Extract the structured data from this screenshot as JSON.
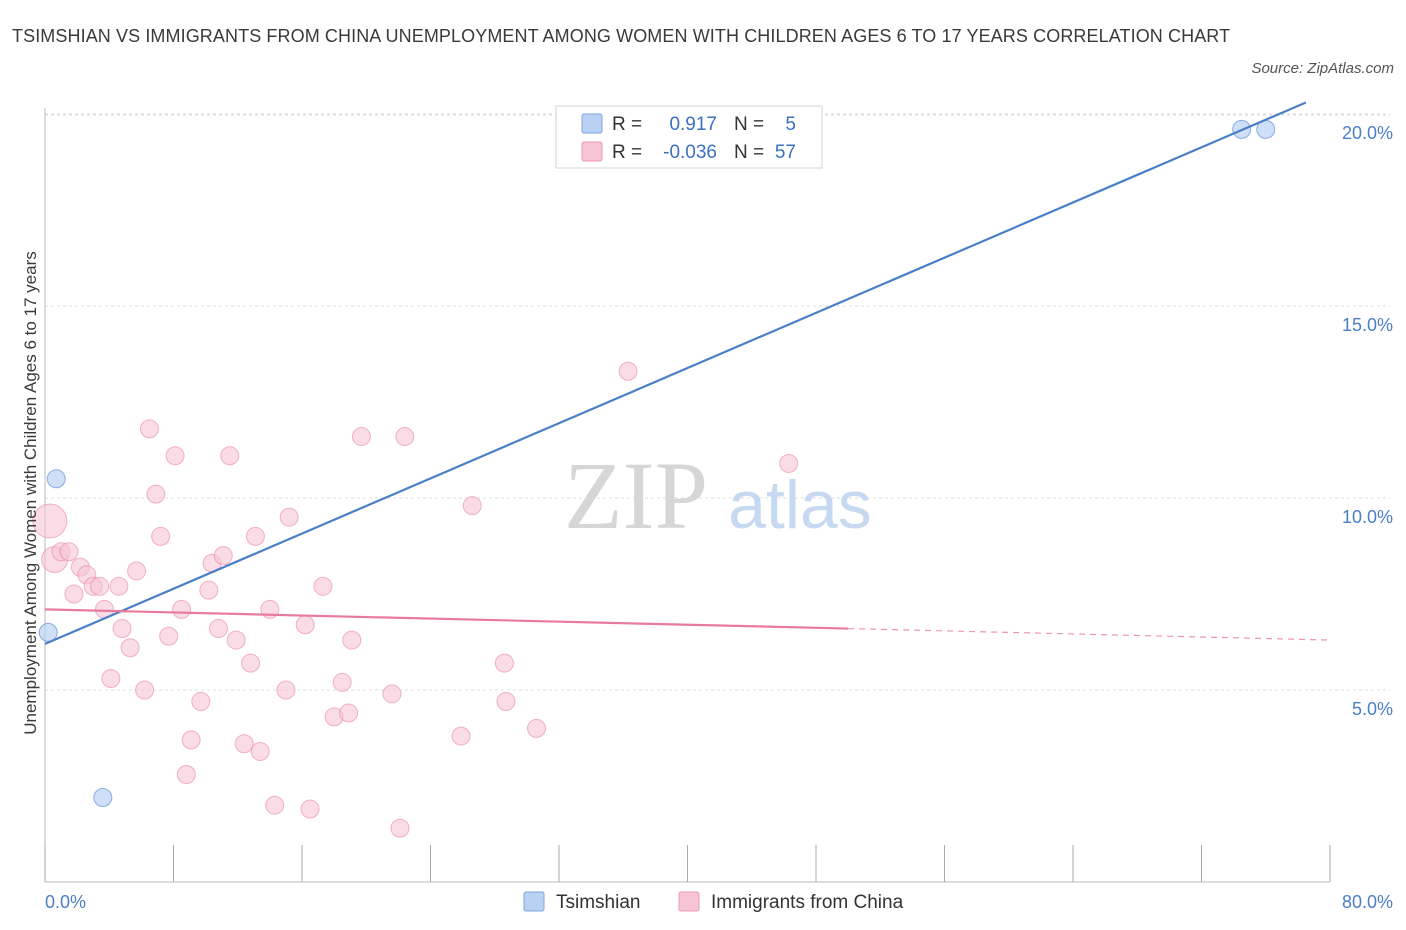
{
  "header": {
    "title": "TSIMSHIAN VS IMMIGRANTS FROM CHINA UNEMPLOYMENT AMONG WOMEN WITH CHILDREN AGES 6 TO 17 YEARS CORRELATION CHART",
    "source": "Source: ZipAtlas.com"
  },
  "watermark": {
    "zip": "ZIP",
    "atlas": "atlas"
  },
  "legend": {
    "r_label": "R =",
    "n_label": "N =",
    "rows": [
      {
        "r": "0.917",
        "n": "5"
      },
      {
        "r": "-0.036",
        "n": "57"
      }
    ]
  },
  "bottom_legend": [
    "Tsimshian",
    "Immigrants from China"
  ],
  "colors": {
    "tsimshian": "#4a7fc8",
    "tsimshian_fill": "#b9d1f3",
    "china": "#e87a9e",
    "china_fill": "#f7c4d5",
    "grid": "#dcdcdc"
  },
  "chart_data": {
    "type": "scatter",
    "title": "TSIMSHIAN VS IMMIGRANTS FROM CHINA UNEMPLOYMENT AMONG WOMEN WITH CHILDREN AGES 6 TO 17 YEARS CORRELATION CHART",
    "xlabel": "",
    "ylabel": "Unemployment Among Women with Children Ages 6 to 17 years",
    "xlim": [
      0,
      80
    ],
    "ylim": [
      0,
      20.5
    ],
    "x_tick_labels": [
      "0.0%",
      "80.0%"
    ],
    "y_tick_labels": [
      "5.0%",
      "10.0%",
      "15.0%",
      "20.0%"
    ],
    "y_ticks": [
      5,
      10,
      15,
      20
    ],
    "series": [
      {
        "name": "Tsimshian",
        "R": 0.917,
        "N": 5,
        "points": [
          [
            0.2,
            6.5,
            9
          ],
          [
            0.7,
            10.5,
            9
          ],
          [
            3.6,
            2.2,
            9
          ],
          [
            74.5,
            19.6,
            9
          ],
          [
            76.0,
            19.6,
            9
          ]
        ],
        "trend": {
          "x": [
            0,
            78.5
          ],
          "y": [
            6.2,
            20.3
          ],
          "dashed_to": null
        }
      },
      {
        "name": "Immigrants from China",
        "R": -0.036,
        "N": 57,
        "points": [
          [
            0.3,
            9.4,
            17
          ],
          [
            0.6,
            8.4,
            13
          ],
          [
            1.0,
            8.6,
            9
          ],
          [
            1.5,
            8.6,
            9
          ],
          [
            2.2,
            8.2,
            9
          ],
          [
            2.6,
            8.0,
            9
          ],
          [
            1.8,
            7.5,
            9
          ],
          [
            3.0,
            7.7,
            9
          ],
          [
            3.4,
            7.7,
            9
          ],
          [
            3.7,
            7.1,
            9
          ],
          [
            4.6,
            7.7,
            9
          ],
          [
            5.7,
            8.1,
            9
          ],
          [
            4.8,
            6.6,
            9
          ],
          [
            5.3,
            6.1,
            9
          ],
          [
            4.1,
            5.3,
            9
          ],
          [
            6.2,
            5.0,
            9
          ],
          [
            6.5,
            11.8,
            9
          ],
          [
            6.9,
            10.1,
            9
          ],
          [
            7.2,
            9.0,
            9
          ],
          [
            8.1,
            11.1,
            9
          ],
          [
            7.7,
            6.4,
            9
          ],
          [
            8.5,
            7.1,
            9
          ],
          [
            8.8,
            2.8,
            9
          ],
          [
            9.1,
            3.7,
            9
          ],
          [
            9.7,
            4.7,
            9
          ],
          [
            10.2,
            7.6,
            9
          ],
          [
            10.4,
            8.3,
            9
          ],
          [
            11.1,
            8.5,
            9
          ],
          [
            10.8,
            6.6,
            9
          ],
          [
            11.5,
            11.1,
            9
          ],
          [
            11.9,
            6.3,
            9
          ],
          [
            12.4,
            3.6,
            9
          ],
          [
            12.8,
            5.7,
            9
          ],
          [
            13.4,
            3.4,
            9
          ],
          [
            13.1,
            9.0,
            9
          ],
          [
            14.0,
            7.1,
            9
          ],
          [
            14.3,
            2.0,
            9
          ],
          [
            15.0,
            5.0,
            9
          ],
          [
            15.2,
            9.5,
            9
          ],
          [
            16.2,
            6.7,
            9
          ],
          [
            16.5,
            1.9,
            9
          ],
          [
            17.3,
            7.7,
            9
          ],
          [
            18.0,
            4.3,
            9
          ],
          [
            18.5,
            5.2,
            9
          ],
          [
            18.9,
            4.4,
            9
          ],
          [
            19.1,
            6.3,
            9
          ],
          [
            19.7,
            11.6,
            9
          ],
          [
            21.6,
            4.9,
            9
          ],
          [
            22.1,
            1.4,
            9
          ],
          [
            22.4,
            11.6,
            9
          ],
          [
            25.9,
            3.8,
            9
          ],
          [
            26.6,
            9.8,
            9
          ],
          [
            28.6,
            5.7,
            9
          ],
          [
            28.7,
            4.7,
            9
          ],
          [
            30.6,
            4.0,
            9
          ],
          [
            36.3,
            13.3,
            9
          ],
          [
            46.3,
            10.9,
            9
          ]
        ],
        "trend": {
          "x": [
            0,
            50
          ],
          "y": [
            7.1,
            6.6
          ],
          "dashed_to": [
            80,
            6.3
          ]
        }
      }
    ]
  }
}
